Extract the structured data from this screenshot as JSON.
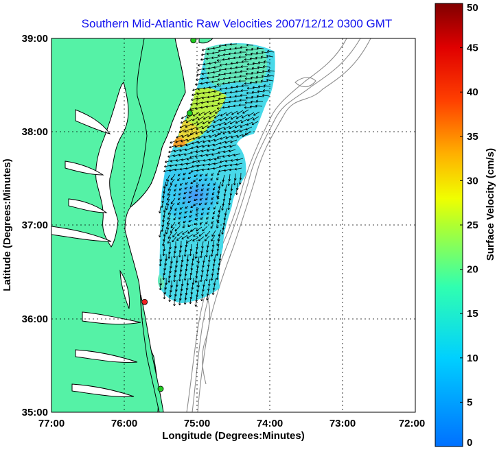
{
  "figure": {
    "title": "Southern Mid-Atlantic Raw Velocities 2007/12/12 0300 GMT",
    "xlabel": "Longitude (Degrees:Minutes)",
    "ylabel": "Latitude (Degrees:Minutes)"
  },
  "map": {
    "x_ticks": [
      "77:00",
      "76:00",
      "75:00",
      "74:00",
      "73:00",
      "72:00"
    ],
    "y_ticks": [
      "39:00",
      "38:00",
      "37:00",
      "36:00",
      "35:00"
    ],
    "lon_range": [
      -77,
      -72
    ],
    "lat_range": [
      35,
      39
    ],
    "land_color": "#55f2a6",
    "grid": true,
    "stations": [
      {
        "lon": -75.05,
        "lat": 38.98,
        "color": "#22cc22"
      },
      {
        "lon": -75.1,
        "lat": 38.2,
        "color": "#22cc22"
      },
      {
        "lon": -75.72,
        "lat": 36.18,
        "color": "#ee2222"
      },
      {
        "lon": -75.5,
        "lat": 35.25,
        "color": "#22cc22"
      }
    ]
  },
  "colorbar": {
    "label": "Surface Velocity (cm/s)",
    "min": 0,
    "max": 50,
    "ticks": [
      "0",
      "5",
      "10",
      "15",
      "20",
      "25",
      "30",
      "35",
      "40",
      "45",
      "50"
    ],
    "colormap": "jet"
  }
}
